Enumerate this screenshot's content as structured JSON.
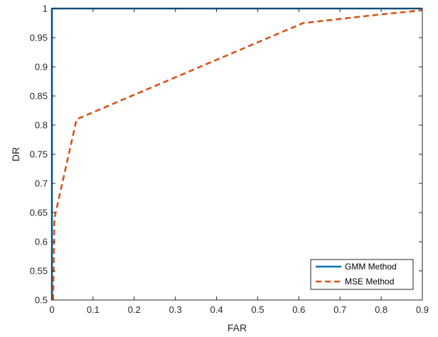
{
  "chart_data": {
    "type": "line",
    "title": "",
    "xlabel": "FAR",
    "ylabel": "DR",
    "xlim": [
      0,
      0.9
    ],
    "ylim": [
      0.5,
      1
    ],
    "xticks": [
      0,
      0.1,
      0.2,
      0.3,
      0.4,
      0.5,
      0.6,
      0.7,
      0.8,
      0.9
    ],
    "xtick_labels": [
      "0",
      "0.1",
      "0.2",
      "0.3",
      "0.4",
      "0.5",
      "0.6",
      "0.7",
      "0.8",
      "0.9"
    ],
    "yticks": [
      0.5,
      0.55,
      0.6,
      0.65,
      0.7,
      0.75,
      0.8,
      0.85,
      0.9,
      0.95,
      1
    ],
    "ytick_labels": [
      "0.5",
      "0.55",
      "0.6",
      "0.65",
      "0.7",
      "0.75",
      "0.8",
      "0.85",
      "0.9",
      "0.95",
      "1"
    ],
    "grid": false,
    "legend": {
      "position": "bottom-right"
    },
    "series": [
      {
        "name": "GMM Method",
        "color": "#0072BD",
        "style": "solid",
        "x": [
          0,
          0,
          0.9
        ],
        "y": [
          0.5,
          1,
          1
        ]
      },
      {
        "name": "MSE Method",
        "color": "#D95319",
        "style": "dashed",
        "x": [
          0.003,
          0.006,
          0.06,
          0.61,
          0.8,
          0.9
        ],
        "y": [
          0.5,
          0.64,
          0.81,
          0.975,
          0.99,
          0.997
        ]
      }
    ]
  }
}
